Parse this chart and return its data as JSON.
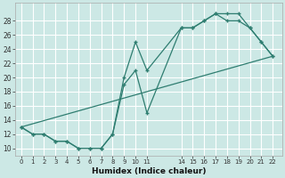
{
  "xlabel": "Humidex (Indice chaleur)",
  "bg_color": "#cce8e5",
  "grid_color": "#ffffff",
  "line_color": "#2e7d70",
  "xlim": [
    -0.5,
    22.8
  ],
  "ylim": [
    9.0,
    30.5
  ],
  "xticks": [
    0,
    1,
    2,
    3,
    4,
    5,
    6,
    7,
    8,
    9,
    10,
    11,
    14,
    15,
    16,
    17,
    18,
    19,
    20,
    21,
    22
  ],
  "yticks": [
    10,
    12,
    14,
    16,
    18,
    20,
    22,
    24,
    26,
    28
  ],
  "line1_x": [
    0,
    1,
    2,
    3,
    4,
    5,
    6,
    7,
    8,
    9,
    10,
    11,
    14,
    15,
    16,
    17,
    18,
    19,
    20,
    21,
    22
  ],
  "line1_y": [
    13,
    12,
    12,
    11,
    11,
    10,
    10,
    10,
    12,
    19,
    21,
    15,
    27,
    27,
    28,
    29,
    29,
    29,
    27,
    25,
    23
  ],
  "line2_x": [
    0,
    1,
    2,
    3,
    4,
    5,
    6,
    7,
    8,
    9,
    10,
    11,
    14,
    15,
    16,
    17,
    18,
    19,
    20,
    21,
    22
  ],
  "line2_y": [
    13,
    12,
    12,
    11,
    11,
    10,
    10,
    10,
    12,
    20,
    25,
    21,
    27,
    27,
    28,
    29,
    28,
    28,
    27,
    25,
    23
  ],
  "line3_x": [
    0,
    22
  ],
  "line3_y": [
    13,
    23
  ]
}
